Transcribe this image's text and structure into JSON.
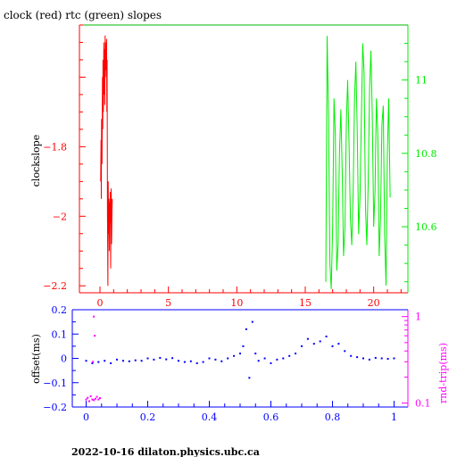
{
  "colors": {
    "clock": "#ff0000",
    "rtc": "#00ee00",
    "offset": "#0000ff",
    "rtt": "#ff00ff",
    "frame_top": "#00bb00",
    "text": "#000000"
  },
  "footer": "2022-10-16 dilaton.physics.ubc.ca",
  "chart_data": [
    {
      "type": "line",
      "title": "clock (red) rtc (green) slopes",
      "ylabel": "clockslope",
      "xlim": [
        -1.5,
        22.5
      ],
      "ylim": [
        -2.22,
        -1.45
      ],
      "xticks": [
        0,
        5,
        10,
        15,
        20
      ],
      "yticks": [
        -2.2,
        -2,
        -1.8
      ],
      "ylim_right": [
        10.42,
        11.15
      ],
      "yticks_right": [
        10.6,
        10.8,
        11
      ],
      "series": [
        {
          "name": "clock",
          "axis": "left",
          "x": [
            0.05,
            0.08,
            0.1,
            0.12,
            0.15,
            0.18,
            0.2,
            0.22,
            0.25,
            0.28,
            0.3,
            0.33,
            0.35,
            0.38,
            0.4,
            0.42,
            0.45,
            0.48,
            0.5,
            0.52,
            0.55,
            0.58,
            0.6,
            0.63,
            0.65,
            0.68,
            0.7,
            0.72,
            0.75,
            0.78,
            0.8,
            0.82,
            0.85,
            0.88,
            0.9
          ],
          "y": [
            -1.9,
            -1.78,
            -1.95,
            -1.72,
            -1.85,
            -1.6,
            -1.75,
            -1.55,
            -1.7,
            -1.5,
            -1.65,
            -1.52,
            -1.68,
            -1.48,
            -1.6,
            -1.5,
            -1.58,
            -1.49,
            -1.7,
            -1.55,
            -2.0,
            -2.2,
            -1.9,
            -2.05,
            -1.95,
            -2.1,
            -1.96,
            -2.02,
            -1.93,
            -2.15,
            -2.0,
            -1.92,
            -2.08,
            -1.98,
            -1.95
          ]
        },
        {
          "name": "rtc",
          "axis": "right",
          "x": [
            16.5,
            16.6,
            16.7,
            16.8,
            16.9,
            17.0,
            17.1,
            17.2,
            17.3,
            17.4,
            17.5,
            17.6,
            17.7,
            17.8,
            17.9,
            18.0,
            18.1,
            18.2,
            18.3,
            18.4,
            18.5,
            18.6,
            18.7,
            18.8,
            18.9,
            19.0,
            19.1,
            19.2,
            19.3,
            19.4,
            19.5,
            19.6,
            19.7,
            19.8,
            19.9,
            20.0,
            20.1,
            20.2,
            20.3,
            20.4,
            20.5,
            20.6,
            20.7,
            20.8,
            20.9,
            21.0,
            21.1,
            21.2
          ],
          "y": [
            10.45,
            11.12,
            10.9,
            10.5,
            10.43,
            10.6,
            10.95,
            10.85,
            10.48,
            10.55,
            10.8,
            10.92,
            10.75,
            10.52,
            10.6,
            10.88,
            11.0,
            10.82,
            10.62,
            10.55,
            10.7,
            10.95,
            11.05,
            10.85,
            10.58,
            10.68,
            10.9,
            11.1,
            11.02,
            10.65,
            10.55,
            10.72,
            10.98,
            11.08,
            10.9,
            10.6,
            10.7,
            10.95,
            10.85,
            10.52,
            10.62,
            10.88,
            10.93,
            10.58,
            10.44,
            10.8,
            10.95,
            10.68
          ]
        }
      ]
    },
    {
      "type": "scatter",
      "title": "",
      "xlabel": "",
      "ylabel": "offset(ms)",
      "ylabel_right": "rnd-trip(ms)",
      "xlim": [
        -0.045,
        1.045
      ],
      "ylim": [
        -0.2,
        0.2
      ],
      "xticks": [
        0,
        0.2,
        0.4,
        0.6,
        0.8,
        1
      ],
      "yticks": [
        -0.2,
        -0.1,
        0,
        0.1,
        0.2
      ],
      "yscale_right": "log",
      "ylim_right": [
        0.09,
        1.2
      ],
      "yticks_right": [
        0.1,
        1
      ],
      "series": [
        {
          "name": "offset",
          "axis": "left",
          "x": [
            0,
            0.02,
            0.04,
            0.06,
            0.08,
            0.1,
            0.12,
            0.14,
            0.16,
            0.18,
            0.2,
            0.22,
            0.24,
            0.26,
            0.28,
            0.3,
            0.32,
            0.34,
            0.36,
            0.38,
            0.4,
            0.42,
            0.44,
            0.46,
            0.48,
            0.5,
            0.51,
            0.52,
            0.53,
            0.54,
            0.55,
            0.56,
            0.58,
            0.6,
            0.62,
            0.64,
            0.66,
            0.68,
            0.7,
            0.72,
            0.74,
            0.76,
            0.78,
            0.8,
            0.82,
            0.84,
            0.86,
            0.88,
            0.9,
            0.92,
            0.94,
            0.96,
            0.98,
            1.0
          ],
          "y": [
            -0.01,
            -0.02,
            -0.015,
            -0.01,
            -0.02,
            -0.005,
            -0.01,
            -0.012,
            -0.008,
            -0.01,
            0.0,
            -0.005,
            0.002,
            -0.004,
            0.001,
            -0.01,
            -0.015,
            -0.012,
            -0.02,
            -0.015,
            0.0,
            -0.005,
            -0.012,
            0.0,
            0.01,
            0.02,
            0.05,
            0.12,
            -0.08,
            0.15,
            0.02,
            -0.01,
            0.0,
            -0.02,
            -0.005,
            0.0,
            0.01,
            0.02,
            0.05,
            0.08,
            0.06,
            0.07,
            0.09,
            0.05,
            0.06,
            0.03,
            0.01,
            0.005,
            0.0,
            -0.005,
            0.002,
            0.0,
            -0.002,
            0.0
          ]
        },
        {
          "name": "rnd-trip",
          "axis": "right",
          "x": [
            0.0,
            0.005,
            0.01,
            0.015,
            0.02,
            0.025,
            0.03,
            0.035,
            0.04,
            0.045,
            0.025,
            0.028,
            0.022
          ],
          "y": [
            0.11,
            0.115,
            0.105,
            0.12,
            0.11,
            0.108,
            0.112,
            0.118,
            0.11,
            0.114,
            1.0,
            0.6,
            0.3
          ]
        }
      ]
    }
  ]
}
